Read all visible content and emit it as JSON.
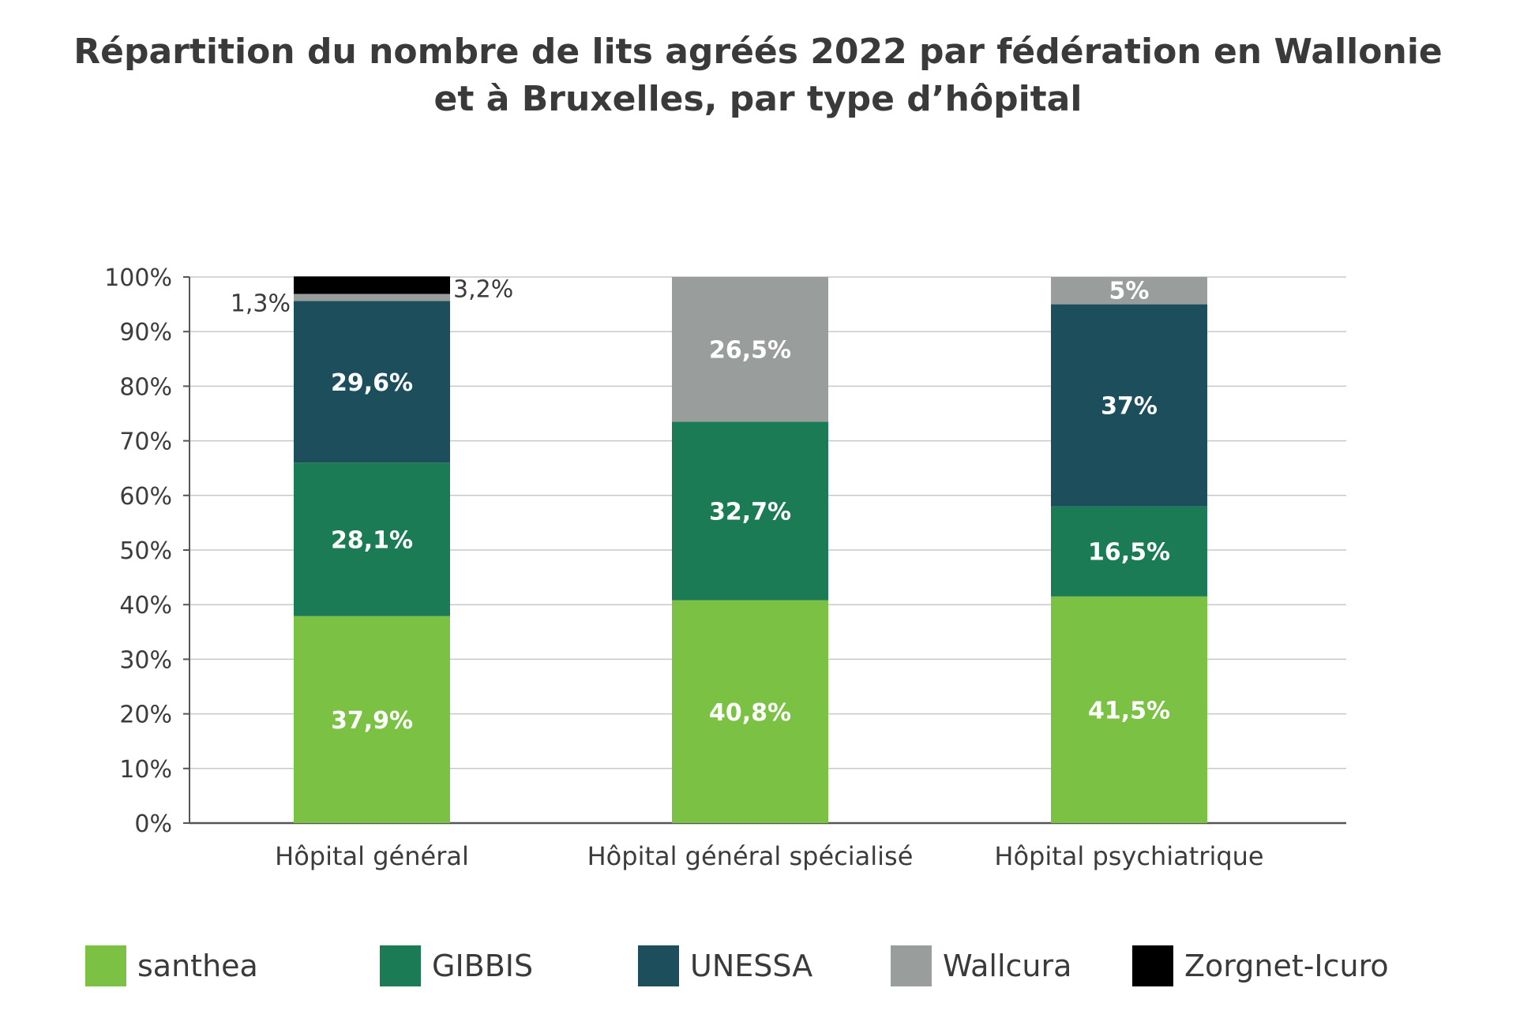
{
  "chart_data": {
    "type": "bar",
    "stacked": true,
    "title_lines": [
      "Répartition du nombre de lits agréés 2022 par fédération en Wallonie",
      "et à Bruxelles, par type d’hôpital"
    ],
    "categories": [
      "Hôpital général",
      "Hôpital général spécialisé",
      "Hôpital psychiatrique"
    ],
    "ylim": [
      0,
      100
    ],
    "yticks": [
      0,
      10,
      20,
      30,
      40,
      50,
      60,
      70,
      80,
      90,
      100
    ],
    "ytick_labels": [
      "0%",
      "10%",
      "20%",
      "30%",
      "40%",
      "50%",
      "60%",
      "70%",
      "80%",
      "90%",
      "100%"
    ],
    "grid": true,
    "legend_position": "bottom",
    "series": [
      {
        "name": "santhea",
        "color": "#7bc143",
        "values": [
          37.9,
          40.8,
          41.5
        ],
        "labels": [
          "37,9%",
          "40,8%",
          "41,5%"
        ]
      },
      {
        "name": "GIBBIS",
        "color": "#1b7b55",
        "values": [
          28.1,
          32.7,
          16.5
        ],
        "labels": [
          "28,1%",
          "32,7%",
          "16,5%"
        ]
      },
      {
        "name": "UNESSA",
        "color": "#1d4e5c",
        "values": [
          29.6,
          0,
          37
        ],
        "labels": [
          "29,6%",
          "",
          "37%"
        ]
      },
      {
        "name": "Wallcura",
        "color": "#999d9c",
        "values": [
          1.3,
          26.5,
          5
        ],
        "labels": [
          "1,3%",
          "26,5%",
          "5%"
        ]
      },
      {
        "name": "Zorgnet-Icuro",
        "color": "#000000",
        "values": [
          3.2,
          0,
          0
        ],
        "labels": [
          "3,2%",
          "",
          ""
        ]
      }
    ]
  }
}
